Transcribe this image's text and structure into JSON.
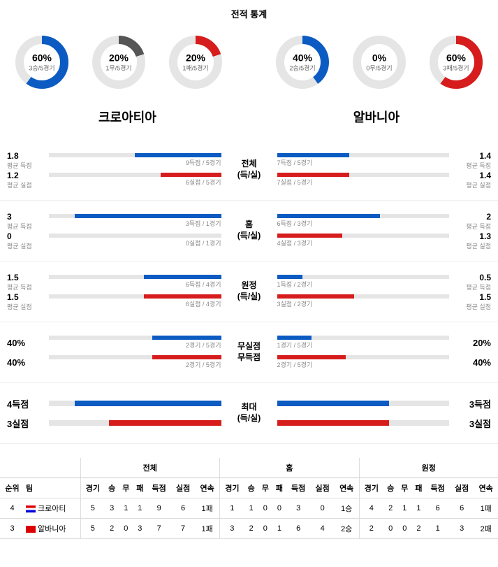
{
  "title": "전적 통계",
  "colors": {
    "blue": "#0b5bc2",
    "red": "#d61c1c",
    "gray": "#555555",
    "track": "#e5e5e5"
  },
  "donuts_left": [
    {
      "pct": "60%",
      "sub": "3승/5경기",
      "val": 60,
      "color": "#0b5bc2"
    },
    {
      "pct": "20%",
      "sub": "1무/5경기",
      "val": 20,
      "color": "#555555"
    },
    {
      "pct": "20%",
      "sub": "1패/5경기",
      "val": 20,
      "color": "#d61c1c"
    }
  ],
  "donuts_right": [
    {
      "pct": "40%",
      "sub": "2승/5경기",
      "val": 40,
      "color": "#0b5bc2"
    },
    {
      "pct": "0%",
      "sub": "0무/5경기",
      "val": 0,
      "color": "#555555"
    },
    {
      "pct": "60%",
      "sub": "3패/5경기",
      "val": 60,
      "color": "#d61c1c"
    }
  ],
  "team_left": "크로아티아",
  "team_right": "알바니아",
  "blocks": [
    {
      "center": [
        "전체",
        "(득/실)"
      ],
      "left_rows": [
        {
          "val": "1.8",
          "label": "평균 득점",
          "text": "9득점 / 5경기",
          "pct": 50,
          "color": "blue"
        },
        {
          "val": "1.2",
          "label": "평균 실점",
          "text": "6실점 / 5경기",
          "pct": 35,
          "color": "red"
        }
      ],
      "right_rows": [
        {
          "val": "1.4",
          "label": "평균 득점",
          "text": "7득점 / 5경기",
          "pct": 42,
          "color": "blue"
        },
        {
          "val": "1.4",
          "label": "평균 실점",
          "text": "7실점 / 5경기",
          "pct": 42,
          "color": "red"
        }
      ]
    },
    {
      "center": [
        "홈",
        "(득/실)"
      ],
      "left_rows": [
        {
          "val": "3",
          "label": "평균 득점",
          "text": "3득점 / 1경기",
          "pct": 85,
          "color": "blue"
        },
        {
          "val": "0",
          "label": "평균 실점",
          "text": "0실점 / 1경기",
          "pct": 0,
          "color": "red"
        }
      ],
      "right_rows": [
        {
          "val": "2",
          "label": "평균 득점",
          "text": "6득점 / 3경기",
          "pct": 60,
          "color": "blue"
        },
        {
          "val": "1.3",
          "label": "평균 실점",
          "text": "4실점 / 3경기",
          "pct": 38,
          "color": "red"
        }
      ]
    },
    {
      "center": [
        "원정",
        "(득/실)"
      ],
      "left_rows": [
        {
          "val": "1.5",
          "label": "평균 득점",
          "text": "6득점 / 4경기",
          "pct": 45,
          "color": "blue"
        },
        {
          "val": "1.5",
          "label": "평균 실점",
          "text": "6실점 / 4경기",
          "pct": 45,
          "color": "red"
        }
      ],
      "right_rows": [
        {
          "val": "0.5",
          "label": "평균 득점",
          "text": "1득점 / 2경기",
          "pct": 15,
          "color": "blue"
        },
        {
          "val": "1.5",
          "label": "평균 실점",
          "text": "3실점 / 2경기",
          "pct": 45,
          "color": "red"
        }
      ]
    },
    {
      "center": [
        "무실점",
        "무득점"
      ],
      "simple": true,
      "left_rows": [
        {
          "val": "40%",
          "text": "2경기 / 5경기",
          "pct": 40,
          "color": "blue"
        },
        {
          "val": "40%",
          "text": "2경기 / 5경기",
          "pct": 40,
          "color": "red"
        }
      ],
      "right_rows": [
        {
          "val": "20%",
          "text": "1경기 / 5경기",
          "pct": 20,
          "color": "blue"
        },
        {
          "val": "40%",
          "text": "2경기 / 5경기",
          "pct": 40,
          "color": "red"
        }
      ]
    },
    {
      "center": [
        "최대",
        "(득/실)"
      ],
      "simple": true,
      "left_rows": [
        {
          "val": "4득점",
          "text": "",
          "pct": 85,
          "color": "blue"
        },
        {
          "val": "3실점",
          "text": "",
          "pct": 65,
          "color": "red"
        }
      ],
      "right_rows": [
        {
          "val": "3득점",
          "text": "",
          "pct": 65,
          "color": "blue"
        },
        {
          "val": "3실점",
          "text": "",
          "pct": 65,
          "color": "red"
        }
      ]
    }
  ],
  "table": {
    "group_headers": [
      "전체",
      "홈",
      "원정"
    ],
    "cols": [
      "순위",
      "팀",
      "경기",
      "승",
      "무",
      "패",
      "득점",
      "실점",
      "연속",
      "경기",
      "승",
      "무",
      "패",
      "득점",
      "실점",
      "연속",
      "경기",
      "승",
      "무",
      "패",
      "득점",
      "실점",
      "연속"
    ],
    "rows": [
      {
        "rank": "4",
        "flag": "cro",
        "team": "크로아티",
        "cells": [
          "5",
          "3",
          "1",
          "1",
          "9",
          "6",
          "1패",
          "1",
          "1",
          "0",
          "0",
          "3",
          "0",
          "1승",
          "4",
          "2",
          "1",
          "1",
          "6",
          "6",
          "1패"
        ]
      },
      {
        "rank": "3",
        "flag": "alb",
        "team": "알바니아",
        "cells": [
          "5",
          "2",
          "0",
          "3",
          "7",
          "7",
          "1패",
          "3",
          "2",
          "0",
          "1",
          "6",
          "4",
          "2승",
          "2",
          "0",
          "0",
          "2",
          "1",
          "3",
          "2패"
        ]
      }
    ]
  }
}
